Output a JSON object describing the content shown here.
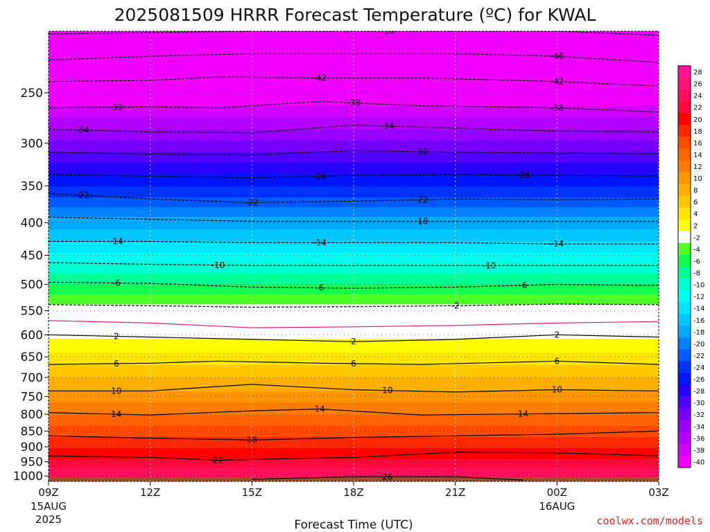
{
  "chart_data": {
    "type": "heatmap",
    "title": "2025081509 HRRR Forecast Temperature (ºC) for KWAL",
    "xlabel": "Forecast Time (UTC)",
    "ylabel": "",
    "x_ticks": [
      {
        "hour": 0,
        "label": "09Z",
        "sub1": "15AUG",
        "sub2": "2025"
      },
      {
        "hour": 3,
        "label": "12Z",
        "sub1": "",
        "sub2": ""
      },
      {
        "hour": 6,
        "label": "15Z",
        "sub1": "",
        "sub2": ""
      },
      {
        "hour": 9,
        "label": "18Z",
        "sub1": "",
        "sub2": ""
      },
      {
        "hour": 12,
        "label": "21Z",
        "sub1": "",
        "sub2": ""
      },
      {
        "hour": 15,
        "label": "00Z",
        "sub1": "16AUG",
        "sub2": ""
      },
      {
        "hour": 18,
        "label": "03Z",
        "sub1": "",
        "sub2": ""
      }
    ],
    "xlim": [
      0,
      18
    ],
    "y_ticks": [
      250,
      300,
      350,
      400,
      450,
      500,
      550,
      600,
      650,
      700,
      750,
      800,
      850,
      900,
      950,
      1000
    ],
    "ylim": [
      200,
      1020
    ],
    "y_scale": "log",
    "grid": true,
    "surface_color": "#a05028",
    "colorbar_labels": [
      "28",
      "26",
      "24",
      "22",
      "20",
      "18",
      "16",
      "14",
      "12",
      "10",
      "8",
      "6",
      "4",
      "2",
      "-2",
      "-4",
      "-6",
      "-8",
      "-10",
      "-12",
      "-14",
      "-16",
      "-18",
      "-20",
      "-22",
      "-24",
      "-26",
      "-28",
      "-30",
      "-32",
      "-34",
      "-36",
      "-38",
      "-40"
    ],
    "colorbar_colors": [
      "#ff1493",
      "#ff1478",
      "#ff0f5a",
      "#ff0a3c",
      "#ff0000",
      "#ff2800",
      "#ff4b00",
      "#ff6400",
      "#ff7d00",
      "#ff9600",
      "#ffaf00",
      "#ffc800",
      "#ffe600",
      "#ffff00",
      "#ffffff",
      "#50ff28",
      "#14ff50",
      "#00ff96",
      "#00ffd2",
      "#00fff0",
      "#00e6ff",
      "#00c8ff",
      "#00aaff",
      "#0082ff",
      "#005aff",
      "#0032ff",
      "#0014ff",
      "#2800ff",
      "#5000ff",
      "#7800ff",
      "#9600ff",
      "#b400ff",
      "#d200ff",
      "#f000ff"
    ],
    "temperature_profile": [
      {
        "pressure": 200,
        "temp": -52
      },
      {
        "pressure": 215,
        "temp": -48
      },
      {
        "pressure": 240,
        "temp": -42
      },
      {
        "pressure": 262,
        "temp": -38
      },
      {
        "pressure": 285,
        "temp": -34
      },
      {
        "pressure": 310,
        "temp": -30
      },
      {
        "pressure": 335,
        "temp": -26
      },
      {
        "pressure": 365,
        "temp": -22
      },
      {
        "pressure": 392,
        "temp": -18
      },
      {
        "pressure": 428,
        "temp": -14
      },
      {
        "pressure": 463,
        "temp": -10
      },
      {
        "pressure": 500,
        "temp": -6
      },
      {
        "pressure": 538,
        "temp": -2
      },
      {
        "pressure": 575,
        "temp": 0
      },
      {
        "pressure": 610,
        "temp": 2
      },
      {
        "pressure": 668,
        "temp": 6
      },
      {
        "pressure": 735,
        "temp": 10
      },
      {
        "pressure": 800,
        "temp": 14
      },
      {
        "pressure": 868,
        "temp": 18
      },
      {
        "pressure": 940,
        "temp": 22
      },
      {
        "pressure": 1005,
        "temp": 26
      },
      {
        "pressure": 1020,
        "temp": 28
      }
    ],
    "contours": [
      {
        "temp": -50,
        "style": "dashed",
        "label_hour": 10.0,
        "points": [
          [
            0,
            202
          ],
          [
            3,
            201
          ],
          [
            6,
            200
          ],
          [
            9,
            200
          ],
          [
            12,
            200
          ],
          [
            15,
            200
          ],
          [
            18,
            203
          ]
        ]
      },
      {
        "temp": -46,
        "style": "dashed",
        "label_hour": 15.0,
        "points": [
          [
            0,
            222
          ],
          [
            3,
            219
          ],
          [
            6,
            217
          ],
          [
            9,
            217
          ],
          [
            12,
            217
          ],
          [
            15,
            219
          ],
          [
            18,
            224
          ]
        ]
      },
      {
        "temp": -42,
        "style": "dashed",
        "label_hour": 8.0,
        "points": [
          [
            0,
            240
          ],
          [
            3,
            239
          ],
          [
            5,
            236
          ],
          [
            8,
            237
          ],
          [
            11,
            237
          ],
          [
            15,
            240
          ],
          [
            18,
            244
          ]
        ]
      },
      {
        "temp": -42,
        "style": "dashed",
        "label_hour": 15.0,
        "points": []
      },
      {
        "temp": -38,
        "style": "dashed",
        "label_hour": 2.0,
        "points": [
          [
            0,
            264
          ],
          [
            3,
            263
          ],
          [
            5,
            264
          ],
          [
            8,
            258
          ],
          [
            11,
            262
          ],
          [
            15,
            264
          ],
          [
            18,
            268
          ]
        ]
      },
      {
        "temp": -38,
        "style": "dashed",
        "label_hour": 9.0,
        "points": []
      },
      {
        "temp": -38,
        "style": "dashed",
        "label_hour": 15.0,
        "points": []
      },
      {
        "temp": -34,
        "style": "dashed",
        "label_hour": 1.0,
        "points": [
          [
            0,
            285
          ],
          [
            3,
            288
          ],
          [
            6,
            289
          ],
          [
            9,
            281
          ],
          [
            12,
            284
          ],
          [
            15,
            287
          ],
          [
            18,
            288
          ]
        ]
      },
      {
        "temp": -34,
        "style": "dashed",
        "label_hour": 10.0,
        "points": []
      },
      {
        "temp": -30,
        "style": "dashed",
        "label_hour": 11.0,
        "points": [
          [
            0,
            310
          ],
          [
            3,
            312
          ],
          [
            6,
            313
          ],
          [
            9,
            308
          ],
          [
            12,
            310
          ],
          [
            15,
            311
          ],
          [
            18,
            312
          ]
        ]
      },
      {
        "temp": -26,
        "style": "dashed",
        "label_hour": 8.0,
        "points": [
          [
            0,
            336
          ],
          [
            3,
            338
          ],
          [
            6,
            340
          ],
          [
            9,
            337
          ],
          [
            12,
            336
          ],
          [
            15,
            337
          ],
          [
            18,
            338
          ]
        ]
      },
      {
        "temp": -26,
        "style": "dashed",
        "label_hour": 14.0,
        "points": []
      },
      {
        "temp": -22,
        "style": "dashed",
        "label_hour": 1.0,
        "points": [
          [
            0,
            360
          ],
          [
            3,
            367
          ],
          [
            6,
            372
          ],
          [
            9,
            370
          ],
          [
            12,
            367
          ],
          [
            15,
            368
          ],
          [
            18,
            367
          ]
        ]
      },
      {
        "temp": -22,
        "style": "dashed",
        "label_hour": 6.0,
        "points": []
      },
      {
        "temp": -22,
        "style": "dashed",
        "label_hour": 11.0,
        "points": []
      },
      {
        "temp": -18,
        "style": "dashed",
        "label_hour": 11.0,
        "points": [
          [
            0,
            392
          ],
          [
            3,
            395
          ],
          [
            6,
            398
          ],
          [
            9,
            398
          ],
          [
            12,
            398
          ],
          [
            15,
            398
          ],
          [
            18,
            398
          ]
        ]
      },
      {
        "temp": -14,
        "style": "dashed",
        "label_hour": 2.0,
        "points": [
          [
            0,
            428
          ],
          [
            3,
            428
          ],
          [
            6,
            430
          ],
          [
            9,
            430
          ],
          [
            12,
            430
          ],
          [
            15,
            432
          ],
          [
            18,
            432
          ]
        ]
      },
      {
        "temp": -14,
        "style": "dashed",
        "label_hour": 8.0,
        "points": []
      },
      {
        "temp": -14,
        "style": "dashed",
        "label_hour": 15.0,
        "points": []
      },
      {
        "temp": -10,
        "style": "dashed",
        "label_hour": 5.0,
        "points": [
          [
            0,
            462
          ],
          [
            3,
            465
          ],
          [
            6,
            467
          ],
          [
            9,
            467
          ],
          [
            12,
            467
          ],
          [
            15,
            467
          ],
          [
            18,
            467
          ]
        ]
      },
      {
        "temp": -10,
        "style": "dashed",
        "label_hour": 13.0,
        "points": []
      },
      {
        "temp": -6,
        "style": "dashed",
        "label_hour": 2.0,
        "points": [
          [
            0,
            496
          ],
          [
            3,
            498
          ],
          [
            6,
            505
          ],
          [
            9,
            507
          ],
          [
            12,
            505
          ],
          [
            15,
            500
          ],
          [
            18,
            502
          ]
        ]
      },
      {
        "temp": -6,
        "style": "dashed",
        "label_hour": 8.0,
        "points": []
      },
      {
        "temp": -6,
        "style": "dashed",
        "label_hour": 14.0,
        "points": []
      },
      {
        "temp": -2,
        "style": "dashed",
        "label_hour": 12.0,
        "points": [
          [
            0,
            538
          ],
          [
            3,
            540
          ],
          [
            6,
            543
          ],
          [
            9,
            542
          ],
          [
            12,
            540
          ],
          [
            15,
            537
          ],
          [
            18,
            538
          ]
        ]
      },
      {
        "temp": 0,
        "style": "solid-magenta",
        "label_hour": -1,
        "points": [
          [
            0,
            570
          ],
          [
            3,
            575
          ],
          [
            6,
            585
          ],
          [
            9,
            583
          ],
          [
            12,
            580
          ],
          [
            15,
            575
          ],
          [
            18,
            572
          ]
        ]
      },
      {
        "temp": 2,
        "style": "solid",
        "label_hour": 2.0,
        "points": [
          [
            0,
            600
          ],
          [
            3,
            605
          ],
          [
            6,
            610
          ],
          [
            9,
            615
          ],
          [
            12,
            610
          ],
          [
            15,
            600
          ],
          [
            18,
            605
          ]
        ]
      },
      {
        "temp": 2,
        "style": "solid",
        "label_hour": 9.0,
        "points": []
      },
      {
        "temp": 2,
        "style": "solid",
        "label_hour": 15.0,
        "points": []
      },
      {
        "temp": 6,
        "style": "solid",
        "label_hour": 2.0,
        "points": [
          [
            0,
            668
          ],
          [
            3,
            665
          ],
          [
            5,
            660
          ],
          [
            8,
            665
          ],
          [
            11,
            668
          ],
          [
            15,
            660
          ],
          [
            18,
            668
          ]
        ]
      },
      {
        "temp": 6,
        "style": "solid",
        "label_hour": 9.0,
        "points": []
      },
      {
        "temp": 6,
        "style": "solid",
        "label_hour": 15.0,
        "points": []
      },
      {
        "temp": 10,
        "style": "solid",
        "label_hour": 2.0,
        "points": [
          [
            0,
            735
          ],
          [
            3,
            735
          ],
          [
            6,
            718
          ],
          [
            9,
            732
          ],
          [
            12,
            738
          ],
          [
            15,
            732
          ],
          [
            18,
            735
          ]
        ]
      },
      {
        "temp": 10,
        "style": "solid",
        "label_hour": 10.0,
        "points": []
      },
      {
        "temp": 10,
        "style": "solid",
        "label_hour": 15.0,
        "points": []
      },
      {
        "temp": 14,
        "style": "solid",
        "label_hour": 2.0,
        "points": [
          [
            0,
            795
          ],
          [
            3,
            802
          ],
          [
            6,
            790
          ],
          [
            8,
            785
          ],
          [
            11,
            802
          ],
          [
            15,
            798
          ],
          [
            18,
            795
          ]
        ]
      },
      {
        "temp": 14,
        "style": "solid",
        "label_hour": 8.0,
        "points": []
      },
      {
        "temp": 14,
        "style": "solid",
        "label_hour": 14.0,
        "points": []
      },
      {
        "temp": 18,
        "style": "solid",
        "label_hour": 6.0,
        "points": [
          [
            0,
            865
          ],
          [
            3,
            872
          ],
          [
            6,
            878
          ],
          [
            9,
            870
          ],
          [
            12,
            865
          ],
          [
            15,
            860
          ],
          [
            18,
            850
          ]
        ]
      },
      {
        "temp": 22,
        "style": "solid",
        "label_hour": 5.0,
        "points": [
          [
            0,
            930
          ],
          [
            3,
            935
          ],
          [
            5,
            945
          ],
          [
            9,
            935
          ],
          [
            12,
            918
          ],
          [
            15,
            920
          ],
          [
            18,
            930
          ]
        ]
      },
      {
        "temp": 26,
        "style": "solid",
        "label_hour": 10.0,
        "points": [
          [
            6,
            1012
          ],
          [
            9,
            1003
          ],
          [
            12,
            1003
          ],
          [
            14,
            1015
          ]
        ]
      }
    ],
    "credit": "coolwx.com/models"
  }
}
